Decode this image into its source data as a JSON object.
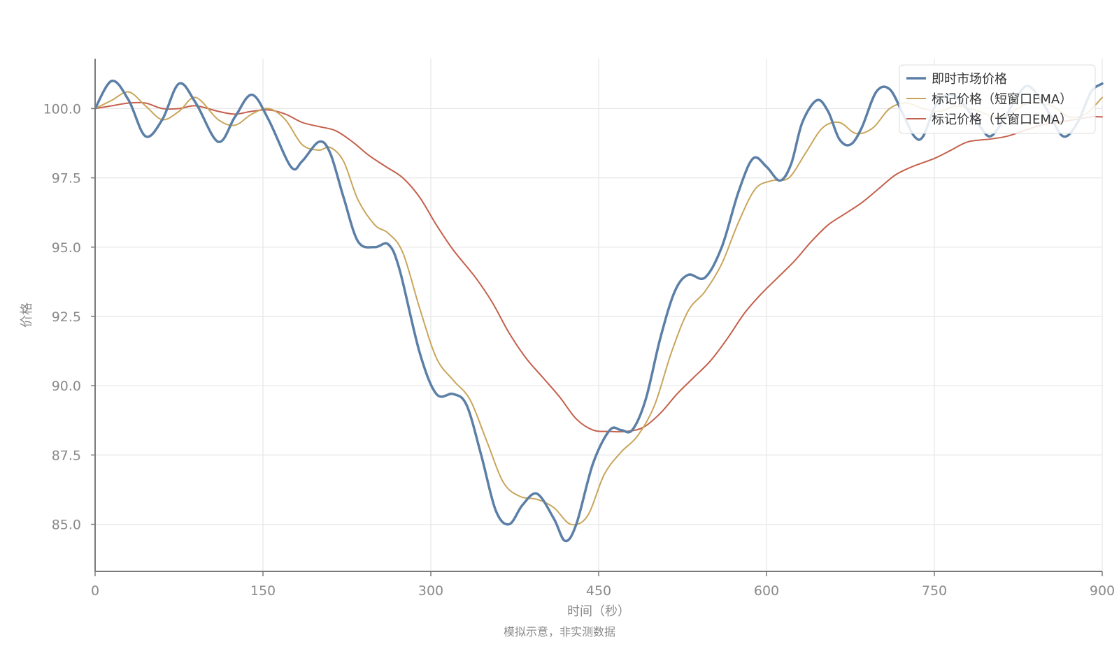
{
  "chart_data": {
    "type": "line",
    "title": "",
    "xlabel": "时间（秒）",
    "ylabel": "价格",
    "footnote": "模拟示意，非实测数据",
    "xlim": [
      0,
      900
    ],
    "ylim": [
      83.3,
      101.8
    ],
    "xticks": [
      0,
      150,
      300,
      450,
      600,
      750,
      900
    ],
    "xtick_labels": [
      "0",
      "150",
      "300",
      "450",
      "600",
      "750",
      "900"
    ],
    "yticks": [
      85.0,
      87.5,
      90.0,
      92.5,
      95.0,
      97.5,
      100.0
    ],
    "ytick_labels": [
      "85.0",
      "87.5",
      "90.0",
      "92.5",
      "95.0",
      "97.5",
      "100.0"
    ],
    "grid": true,
    "legend_position": "top-right",
    "series": [
      {
        "name": "即时市场价格",
        "color": "#5b7fa6",
        "points": [
          [
            0,
            100.0
          ],
          [
            15,
            101.0
          ],
          [
            30,
            100.3
          ],
          [
            45,
            99.0
          ],
          [
            60,
            99.6
          ],
          [
            75,
            100.9
          ],
          [
            90,
            100.2
          ],
          [
            110,
            98.8
          ],
          [
            125,
            99.7
          ],
          [
            140,
            100.5
          ],
          [
            155,
            99.6
          ],
          [
            175,
            97.9
          ],
          [
            185,
            98.1
          ],
          [
            200,
            98.8
          ],
          [
            210,
            98.4
          ],
          [
            222,
            96.8
          ],
          [
            235,
            95.2
          ],
          [
            250,
            95.0
          ],
          [
            262,
            95.1
          ],
          [
            272,
            94.2
          ],
          [
            290,
            91.2
          ],
          [
            305,
            89.7
          ],
          [
            320,
            89.7
          ],
          [
            332,
            89.3
          ],
          [
            345,
            87.5
          ],
          [
            358,
            85.5
          ],
          [
            370,
            85.0
          ],
          [
            382,
            85.7
          ],
          [
            395,
            86.1
          ],
          [
            410,
            85.2
          ],
          [
            420,
            84.4
          ],
          [
            430,
            85.0
          ],
          [
            445,
            87.2
          ],
          [
            460,
            88.4
          ],
          [
            470,
            88.4
          ],
          [
            480,
            88.4
          ],
          [
            492,
            89.5
          ],
          [
            505,
            91.7
          ],
          [
            518,
            93.4
          ],
          [
            530,
            94.0
          ],
          [
            545,
            93.9
          ],
          [
            560,
            95.0
          ],
          [
            575,
            97.0
          ],
          [
            588,
            98.2
          ],
          [
            600,
            97.9
          ],
          [
            612,
            97.4
          ],
          [
            622,
            98.0
          ],
          [
            632,
            99.5
          ],
          [
            645,
            100.3
          ],
          [
            655,
            99.9
          ],
          [
            665,
            98.9
          ],
          [
            675,
            98.7
          ],
          [
            685,
            99.3
          ],
          [
            698,
            100.6
          ],
          [
            710,
            100.7
          ],
          [
            722,
            99.8
          ],
          [
            732,
            99.0
          ],
          [
            740,
            99.0
          ],
          [
            752,
            100.2
          ],
          [
            765,
            100.5
          ],
          [
            775,
            100.2
          ],
          [
            790,
            99.4
          ],
          [
            800,
            99.0
          ],
          [
            812,
            99.6
          ],
          [
            825,
            100.5
          ],
          [
            835,
            100.8
          ],
          [
            850,
            100.0
          ],
          [
            865,
            99.0
          ],
          [
            878,
            99.5
          ],
          [
            890,
            100.6
          ],
          [
            900,
            100.9
          ]
        ]
      },
      {
        "name": "标记价格（短窗口EMA）",
        "color": "#c9a55b",
        "points": [
          [
            0,
            100.0
          ],
          [
            15,
            100.3
          ],
          [
            30,
            100.6
          ],
          [
            45,
            100.1
          ],
          [
            60,
            99.6
          ],
          [
            75,
            99.9
          ],
          [
            90,
            100.4
          ],
          [
            110,
            99.6
          ],
          [
            125,
            99.4
          ],
          [
            140,
            99.8
          ],
          [
            155,
            100.0
          ],
          [
            170,
            99.6
          ],
          [
            185,
            98.7
          ],
          [
            200,
            98.5
          ],
          [
            210,
            98.6
          ],
          [
            222,
            98.1
          ],
          [
            235,
            96.7
          ],
          [
            250,
            95.8
          ],
          [
            262,
            95.5
          ],
          [
            275,
            94.8
          ],
          [
            290,
            92.8
          ],
          [
            305,
            91.0
          ],
          [
            320,
            90.2
          ],
          [
            335,
            89.5
          ],
          [
            350,
            88.0
          ],
          [
            365,
            86.5
          ],
          [
            380,
            86.0
          ],
          [
            395,
            85.9
          ],
          [
            410,
            85.6
          ],
          [
            425,
            85.0
          ],
          [
            440,
            85.3
          ],
          [
            455,
            86.8
          ],
          [
            470,
            87.6
          ],
          [
            485,
            88.2
          ],
          [
            500,
            89.3
          ],
          [
            515,
            91.2
          ],
          [
            530,
            92.7
          ],
          [
            545,
            93.4
          ],
          [
            560,
            94.4
          ],
          [
            575,
            95.9
          ],
          [
            590,
            97.1
          ],
          [
            605,
            97.4
          ],
          [
            620,
            97.5
          ],
          [
            635,
            98.4
          ],
          [
            650,
            99.3
          ],
          [
            665,
            99.5
          ],
          [
            680,
            99.1
          ],
          [
            695,
            99.3
          ],
          [
            710,
            100.0
          ],
          [
            725,
            100.2
          ],
          [
            740,
            100.0
          ],
          [
            755,
            99.9
          ],
          [
            770,
            100.1
          ],
          [
            790,
            99.9
          ],
          [
            805,
            99.7
          ],
          [
            820,
            99.9
          ],
          [
            835,
            100.2
          ],
          [
            855,
            100.1
          ],
          [
            870,
            99.7
          ],
          [
            885,
            99.8
          ],
          [
            900,
            100.4
          ]
        ]
      },
      {
        "name": "标记价格（长窗口EMA）",
        "color": "#c4604b",
        "points": [
          [
            0,
            100.0
          ],
          [
            15,
            100.1
          ],
          [
            30,
            100.2
          ],
          [
            45,
            100.2
          ],
          [
            60,
            100.0
          ],
          [
            75,
            100.0
          ],
          [
            90,
            100.1
          ],
          [
            110,
            99.9
          ],
          [
            125,
            99.8
          ],
          [
            140,
            99.9
          ],
          [
            155,
            99.95
          ],
          [
            170,
            99.8
          ],
          [
            185,
            99.5
          ],
          [
            200,
            99.35
          ],
          [
            215,
            99.2
          ],
          [
            230,
            98.8
          ],
          [
            245,
            98.3
          ],
          [
            260,
            97.9
          ],
          [
            275,
            97.5
          ],
          [
            290,
            96.8
          ],
          [
            305,
            95.8
          ],
          [
            320,
            94.9
          ],
          [
            340,
            93.9
          ],
          [
            355,
            93.0
          ],
          [
            370,
            91.9
          ],
          [
            385,
            91.0
          ],
          [
            400,
            90.3
          ],
          [
            415,
            89.6
          ],
          [
            430,
            88.8
          ],
          [
            445,
            88.4
          ],
          [
            460,
            88.35
          ],
          [
            475,
            88.35
          ],
          [
            490,
            88.5
          ],
          [
            505,
            89.0
          ],
          [
            520,
            89.7
          ],
          [
            535,
            90.3
          ],
          [
            550,
            90.9
          ],
          [
            565,
            91.7
          ],
          [
            580,
            92.6
          ],
          [
            595,
            93.3
          ],
          [
            610,
            93.9
          ],
          [
            625,
            94.5
          ],
          [
            640,
            95.2
          ],
          [
            655,
            95.8
          ],
          [
            670,
            96.2
          ],
          [
            685,
            96.6
          ],
          [
            700,
            97.1
          ],
          [
            715,
            97.6
          ],
          [
            730,
            97.9
          ],
          [
            750,
            98.2
          ],
          [
            765,
            98.5
          ],
          [
            780,
            98.8
          ],
          [
            800,
            98.9
          ],
          [
            815,
            99.0
          ],
          [
            830,
            99.2
          ],
          [
            845,
            99.4
          ],
          [
            860,
            99.5
          ],
          [
            875,
            99.6
          ],
          [
            890,
            99.7
          ],
          [
            900,
            99.7
          ]
        ]
      }
    ]
  }
}
